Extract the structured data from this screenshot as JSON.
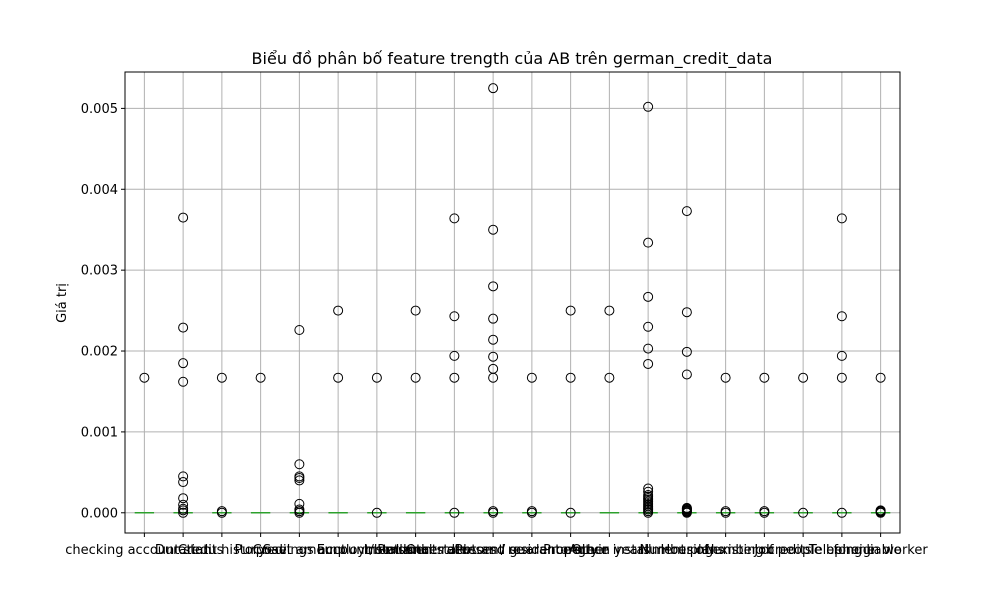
{
  "chart_data": {
    "type": "box",
    "title": "Biểu đồ phân bố feature trength của AB trên german_credit_data",
    "xlabel": "",
    "ylabel": "Giá trị",
    "ylim": [
      -0.00025,
      0.00545
    ],
    "yticks": [
      "0.000",
      "0.001",
      "0.002",
      "0.003",
      "0.004",
      "0.005"
    ],
    "ytick_values": [
      0,
      0.001,
      0.002,
      0.003,
      0.004,
      0.005
    ],
    "grid": true,
    "legend": "none",
    "colors": {
      "median": "#2ca02c",
      "box": "#1f77b4",
      "grid": "#b0b0b0",
      "flier": "#000000"
    },
    "categories": [
      "checking account status",
      "Duration",
      "Credit history",
      "Purpose",
      "Credit amount",
      "Savings account/bonds",
      "Employment since",
      "Installment rate",
      "Personal status and sex",
      "Other debtors / guarantors",
      "Present residence since",
      "Property",
      "Age in years",
      "Other installment plans",
      "Housing",
      "Number of existing credits",
      "Job",
      "Number of people being liable",
      "Telephone",
      "foreign worker"
    ],
    "series": [
      {
        "median": 0,
        "outliers": [
          0.00167
        ]
      },
      {
        "median": 0,
        "outliers": [
          0,
          3e-05,
          5e-05,
          0.0001,
          0.00018,
          0.00038,
          0.00045,
          0.00162,
          0.00185,
          0.00229,
          0.00365
        ]
      },
      {
        "median": 0,
        "outliers": [
          0,
          2e-05,
          0.00167
        ]
      },
      {
        "median": 0,
        "outliers": [
          0.00167
        ]
      },
      {
        "median": 0,
        "outliers": [
          0,
          2e-05,
          4e-05,
          0.00011,
          0.0004,
          0.00043,
          0.00045,
          0.0006,
          0.00226
        ]
      },
      {
        "median": 0,
        "outliers": [
          0.00167,
          0.0025
        ]
      },
      {
        "median": 0,
        "outliers": [
          0,
          0.00167
        ]
      },
      {
        "median": 0,
        "outliers": [
          0.00167,
          0.0025
        ]
      },
      {
        "median": 0,
        "outliers": [
          0,
          0.00167,
          0.00194,
          0.00243,
          0.00364
        ]
      },
      {
        "median": 0,
        "outliers": [
          0,
          2e-05,
          0.00167,
          0.00178,
          0.00193,
          0.00214,
          0.0024,
          0.0028,
          0.0035,
          0.00525
        ]
      },
      {
        "median": 0,
        "outliers": [
          0,
          2e-05,
          0.00167
        ]
      },
      {
        "median": 0,
        "outliers": [
          0,
          0.00167,
          0.0025
        ]
      },
      {
        "median": 0,
        "outliers": [
          0.00167,
          0.0025
        ]
      },
      {
        "median": 0,
        "outliers": [
          0,
          2e-05,
          4e-05,
          6e-05,
          8e-05,
          0.0001,
          0.00012,
          0.00014,
          0.00016,
          0.00018,
          0.0002,
          0.00022,
          0.00026,
          0.0003,
          0.00184,
          0.00203,
          0.0023,
          0.00267,
          0.00334,
          0.00502
        ]
      },
      {
        "median": 0,
        "outliers": [
          0,
          1e-05,
          2e-05,
          3e-05,
          4e-05,
          5e-05,
          6e-05,
          0.00171,
          0.00199,
          0.00248,
          0.00373
        ]
      },
      {
        "median": 0,
        "outliers": [
          0,
          2e-05,
          0.00167
        ]
      },
      {
        "median": 0,
        "outliers": [
          0,
          2e-05,
          0.00167
        ]
      },
      {
        "median": 0,
        "outliers": [
          0,
          0.00167
        ]
      },
      {
        "median": 0,
        "outliers": [
          0,
          0.00167,
          0.00194,
          0.00243,
          0.00364
        ]
      },
      {
        "median": 0,
        "outliers": [
          0,
          1e-05,
          2e-05,
          3e-05,
          0.00167
        ]
      }
    ]
  }
}
